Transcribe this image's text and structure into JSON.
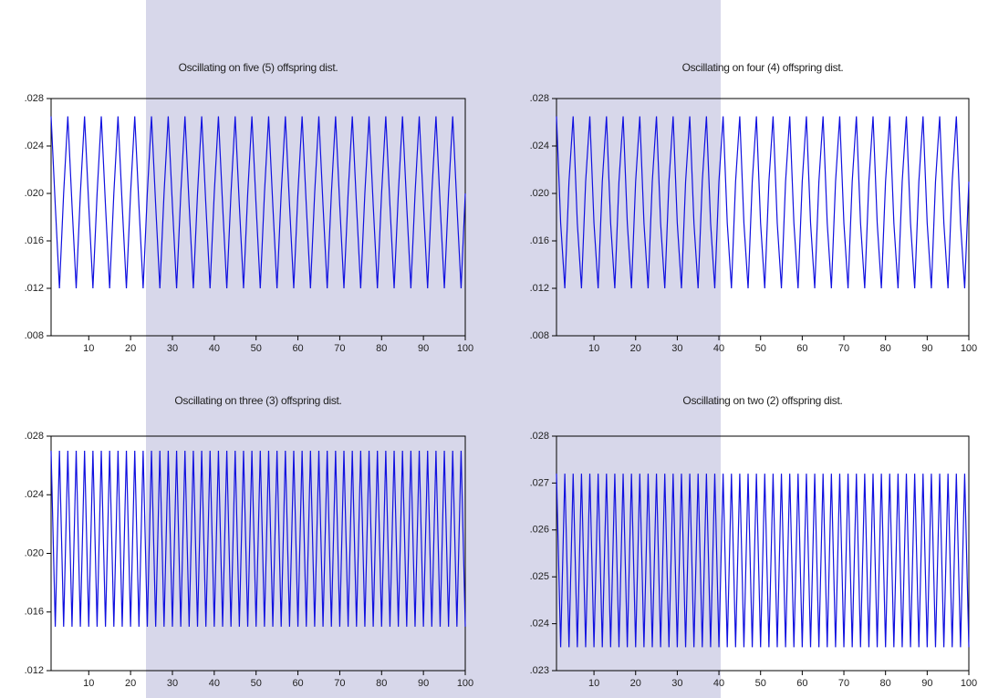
{
  "chart_data": [
    {
      "type": "line",
      "title": "Oscillating on five (5) offspring dist.",
      "color": "#1010e0",
      "x": [
        1,
        2,
        3,
        4,
        5,
        6,
        7,
        8,
        9,
        10,
        11,
        12,
        13,
        14,
        15,
        16,
        17,
        18,
        19,
        20,
        21,
        22,
        23,
        24,
        25,
        26,
        27,
        28,
        29,
        30,
        31,
        32,
        33,
        34,
        35,
        36,
        37,
        38,
        39,
        40,
        41,
        42,
        43,
        44,
        45,
        46,
        47,
        48,
        49,
        50,
        51,
        52,
        53,
        54,
        55,
        56,
        57,
        58,
        59,
        60,
        61,
        62,
        63,
        64,
        65,
        66,
        67,
        68,
        69,
        70,
        71,
        72,
        73,
        74,
        75,
        76,
        77,
        78,
        79,
        80,
        81,
        82,
        83,
        84,
        85,
        86,
        87,
        88,
        89,
        90,
        91,
        92,
        93,
        94,
        95,
        96,
        97,
        98,
        99,
        100
      ],
      "values": [
        0.0265,
        0.019,
        0.012,
        0.02,
        0.0265,
        0.019,
        0.012,
        0.02,
        0.0265,
        0.019,
        0.012,
        0.02,
        0.0265,
        0.019,
        0.012,
        0.02,
        0.0265,
        0.019,
        0.012,
        0.02,
        0.0265,
        0.019,
        0.012,
        0.02,
        0.0265,
        0.019,
        0.012,
        0.02,
        0.0265,
        0.019,
        0.012,
        0.02,
        0.0265,
        0.019,
        0.012,
        0.02,
        0.0265,
        0.019,
        0.012,
        0.02,
        0.0265,
        0.019,
        0.012,
        0.02,
        0.0265,
        0.019,
        0.012,
        0.02,
        0.0265,
        0.019,
        0.012,
        0.02,
        0.0265,
        0.019,
        0.012,
        0.02,
        0.0265,
        0.019,
        0.012,
        0.02,
        0.0265,
        0.019,
        0.012,
        0.02,
        0.0265,
        0.019,
        0.012,
        0.02,
        0.0265,
        0.019,
        0.012,
        0.02,
        0.0265,
        0.019,
        0.012,
        0.02,
        0.0265,
        0.019,
        0.012,
        0.02,
        0.0265,
        0.019,
        0.012,
        0.02,
        0.0265,
        0.019,
        0.012,
        0.02,
        0.0265,
        0.019,
        0.012,
        0.02,
        0.0265,
        0.019,
        0.012,
        0.02,
        0.0265,
        0.019,
        0.012,
        0.02
      ],
      "xlim": [
        1,
        100
      ],
      "xticks": [
        10,
        20,
        30,
        40,
        50,
        60,
        70,
        80,
        90,
        100
      ],
      "ylim": [
        0.008,
        0.028
      ],
      "yticks": [
        {
          "value": 0.008,
          "label": ".008"
        },
        {
          "value": 0.012,
          "label": ".012"
        },
        {
          "value": 0.016,
          "label": ".016"
        },
        {
          "value": 0.02,
          "label": ".020"
        },
        {
          "value": 0.024,
          "label": ".024"
        },
        {
          "value": 0.028,
          "label": ".028"
        }
      ]
    },
    {
      "type": "line",
      "title": "Oscillating on four (4) offspring dist.",
      "color": "#1010e0",
      "x": [
        1,
        2,
        3,
        4,
        5,
        6,
        7,
        8,
        9,
        10,
        11,
        12,
        13,
        14,
        15,
        16,
        17,
        18,
        19,
        20,
        21,
        22,
        23,
        24,
        25,
        26,
        27,
        28,
        29,
        30,
        31,
        32,
        33,
        34,
        35,
        36,
        37,
        38,
        39,
        40,
        41,
        42,
        43,
        44,
        45,
        46,
        47,
        48,
        49,
        50,
        51,
        52,
        53,
        54,
        55,
        56,
        57,
        58,
        59,
        60,
        61,
        62,
        63,
        64,
        65,
        66,
        67,
        68,
        69,
        70,
        71,
        72,
        73,
        74,
        75,
        76,
        77,
        78,
        79,
        80,
        81,
        82,
        83,
        84,
        85,
        86,
        87,
        88,
        89,
        90,
        91,
        92,
        93,
        94,
        95,
        96,
        97,
        98,
        99,
        100
      ],
      "values": [
        0.0265,
        0.0175,
        0.012,
        0.021,
        0.0265,
        0.0175,
        0.012,
        0.021,
        0.0265,
        0.0175,
        0.012,
        0.021,
        0.0265,
        0.0175,
        0.012,
        0.021,
        0.0265,
        0.0175,
        0.012,
        0.021,
        0.0265,
        0.0175,
        0.012,
        0.021,
        0.0265,
        0.0175,
        0.012,
        0.021,
        0.0265,
        0.0175,
        0.012,
        0.021,
        0.0265,
        0.0175,
        0.012,
        0.021,
        0.0265,
        0.0175,
        0.012,
        0.021,
        0.0265,
        0.0175,
        0.012,
        0.021,
        0.0265,
        0.0175,
        0.012,
        0.021,
        0.0265,
        0.0175,
        0.012,
        0.021,
        0.0265,
        0.0175,
        0.012,
        0.021,
        0.0265,
        0.0175,
        0.012,
        0.021,
        0.0265,
        0.0175,
        0.012,
        0.021,
        0.0265,
        0.0175,
        0.012,
        0.021,
        0.0265,
        0.0175,
        0.012,
        0.021,
        0.0265,
        0.0175,
        0.012,
        0.021,
        0.0265,
        0.0175,
        0.012,
        0.021,
        0.0265,
        0.0175,
        0.012,
        0.021,
        0.0265,
        0.0175,
        0.012,
        0.021,
        0.0265,
        0.0175,
        0.012,
        0.021,
        0.0265,
        0.0175,
        0.012,
        0.021,
        0.0265,
        0.0175,
        0.012,
        0.021
      ],
      "xlim": [
        1,
        100
      ],
      "xticks": [
        10,
        20,
        30,
        40,
        50,
        60,
        70,
        80,
        90,
        100
      ],
      "ylim": [
        0.008,
        0.028
      ],
      "yticks": [
        {
          "value": 0.008,
          "label": ".008"
        },
        {
          "value": 0.012,
          "label": ".012"
        },
        {
          "value": 0.016,
          "label": ".016"
        },
        {
          "value": 0.02,
          "label": ".020"
        },
        {
          "value": 0.024,
          "label": ".024"
        },
        {
          "value": 0.028,
          "label": ".028"
        }
      ]
    },
    {
      "type": "line",
      "title": "Oscillating on three (3) offspring dist.",
      "color": "#1010e0",
      "x": [
        1,
        2,
        3,
        4,
        5,
        6,
        7,
        8,
        9,
        10,
        11,
        12,
        13,
        14,
        15,
        16,
        17,
        18,
        19,
        20,
        21,
        22,
        23,
        24,
        25,
        26,
        27,
        28,
        29,
        30,
        31,
        32,
        33,
        34,
        35,
        36,
        37,
        38,
        39,
        40,
        41,
        42,
        43,
        44,
        45,
        46,
        47,
        48,
        49,
        50,
        51,
        52,
        53,
        54,
        55,
        56,
        57,
        58,
        59,
        60,
        61,
        62,
        63,
        64,
        65,
        66,
        67,
        68,
        69,
        70,
        71,
        72,
        73,
        74,
        75,
        76,
        77,
        78,
        79,
        80,
        81,
        82,
        83,
        84,
        85,
        86,
        87,
        88,
        89,
        90,
        91,
        92,
        93,
        94,
        95,
        96,
        97,
        98,
        99,
        100
      ],
      "values": [
        0.027,
        0.015,
        0.027,
        0.015,
        0.027,
        0.015,
        0.027,
        0.015,
        0.027,
        0.015,
        0.027,
        0.015,
        0.027,
        0.015,
        0.027,
        0.015,
        0.027,
        0.015,
        0.027,
        0.015,
        0.027,
        0.015,
        0.027,
        0.015,
        0.027,
        0.015,
        0.027,
        0.015,
        0.027,
        0.015,
        0.027,
        0.015,
        0.027,
        0.015,
        0.027,
        0.015,
        0.027,
        0.015,
        0.027,
        0.015,
        0.027,
        0.015,
        0.027,
        0.015,
        0.027,
        0.015,
        0.027,
        0.015,
        0.027,
        0.015,
        0.027,
        0.015,
        0.027,
        0.015,
        0.027,
        0.015,
        0.027,
        0.015,
        0.027,
        0.015,
        0.027,
        0.015,
        0.027,
        0.015,
        0.027,
        0.015,
        0.027,
        0.015,
        0.027,
        0.015,
        0.027,
        0.015,
        0.027,
        0.015,
        0.027,
        0.015,
        0.027,
        0.015,
        0.027,
        0.015,
        0.027,
        0.015,
        0.027,
        0.015,
        0.027,
        0.015,
        0.027,
        0.015,
        0.027,
        0.015,
        0.027,
        0.015,
        0.027,
        0.015,
        0.027,
        0.015,
        0.027,
        0.015,
        0.027,
        0.015
      ],
      "xlim": [
        1,
        100
      ],
      "xticks": [
        10,
        20,
        30,
        40,
        50,
        60,
        70,
        80,
        90,
        100
      ],
      "ylim": [
        0.012,
        0.028
      ],
      "yticks": [
        {
          "value": 0.012,
          "label": ".012"
        },
        {
          "value": 0.016,
          "label": ".016"
        },
        {
          "value": 0.02,
          "label": ".020"
        },
        {
          "value": 0.024,
          "label": ".024"
        },
        {
          "value": 0.028,
          "label": ".028"
        }
      ]
    },
    {
      "type": "line",
      "title": "Oscillating on two (2) offspring dist.",
      "color": "#1010e0",
      "x": [
        1,
        2,
        3,
        4,
        5,
        6,
        7,
        8,
        9,
        10,
        11,
        12,
        13,
        14,
        15,
        16,
        17,
        18,
        19,
        20,
        21,
        22,
        23,
        24,
        25,
        26,
        27,
        28,
        29,
        30,
        31,
        32,
        33,
        34,
        35,
        36,
        37,
        38,
        39,
        40,
        41,
        42,
        43,
        44,
        45,
        46,
        47,
        48,
        49,
        50,
        51,
        52,
        53,
        54,
        55,
        56,
        57,
        58,
        59,
        60,
        61,
        62,
        63,
        64,
        65,
        66,
        67,
        68,
        69,
        70,
        71,
        72,
        73,
        74,
        75,
        76,
        77,
        78,
        79,
        80,
        81,
        82,
        83,
        84,
        85,
        86,
        87,
        88,
        89,
        90,
        91,
        92,
        93,
        94,
        95,
        96,
        97,
        98,
        99,
        100
      ],
      "values": [
        0.0272,
        0.0235,
        0.0272,
        0.0235,
        0.0272,
        0.0235,
        0.0272,
        0.0235,
        0.0272,
        0.0235,
        0.0272,
        0.0235,
        0.0272,
        0.0235,
        0.0272,
        0.0235,
        0.0272,
        0.0235,
        0.0272,
        0.0235,
        0.0272,
        0.0235,
        0.0272,
        0.0235,
        0.0272,
        0.0235,
        0.0272,
        0.0235,
        0.0272,
        0.0235,
        0.0272,
        0.0235,
        0.0272,
        0.0235,
        0.0272,
        0.0235,
        0.0272,
        0.0235,
        0.0272,
        0.0235,
        0.0272,
        0.0235,
        0.0272,
        0.0235,
        0.0272,
        0.0235,
        0.0272,
        0.0235,
        0.0272,
        0.0235,
        0.0272,
        0.0235,
        0.0272,
        0.0235,
        0.0272,
        0.0235,
        0.0272,
        0.0235,
        0.0272,
        0.0235,
        0.0272,
        0.0235,
        0.0272,
        0.0235,
        0.0272,
        0.0235,
        0.0272,
        0.0235,
        0.0272,
        0.0235,
        0.0272,
        0.0235,
        0.0272,
        0.0235,
        0.0272,
        0.0235,
        0.0272,
        0.0235,
        0.0272,
        0.0235,
        0.0272,
        0.0235,
        0.0272,
        0.0235,
        0.0272,
        0.0235,
        0.0272,
        0.0235,
        0.0272,
        0.0235,
        0.0272,
        0.0235,
        0.0272,
        0.0235,
        0.0272,
        0.0235,
        0.0272,
        0.0235,
        0.0272,
        0.0235
      ],
      "xlim": [
        1,
        100
      ],
      "xticks": [
        10,
        20,
        30,
        40,
        50,
        60,
        70,
        80,
        90,
        100
      ],
      "ylim": [
        0.023,
        0.028
      ],
      "yticks": [
        {
          "value": 0.023,
          "label": ".023"
        },
        {
          "value": 0.024,
          "label": ".024"
        },
        {
          "value": 0.025,
          "label": ".025"
        },
        {
          "value": 0.026,
          "label": ".026"
        },
        {
          "value": 0.027,
          "label": ".027"
        },
        {
          "value": 0.028,
          "label": ".028"
        }
      ]
    }
  ]
}
